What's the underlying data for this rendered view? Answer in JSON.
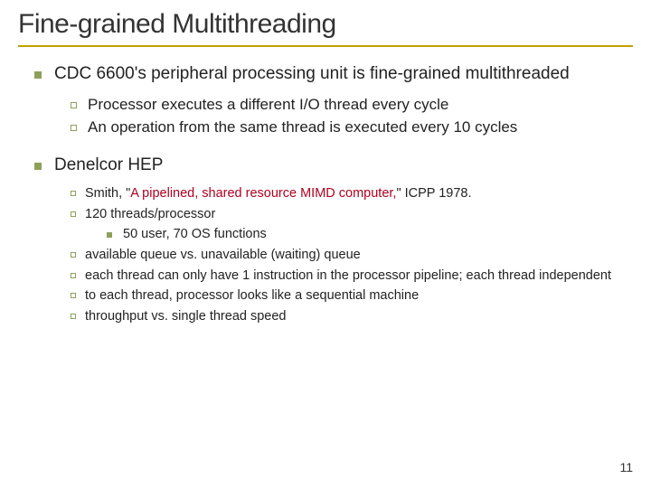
{
  "title": "Fine-grained Multithreading",
  "title_color": "#333333",
  "hr_color": "#c0a000",
  "bullet_color": "#8da05a",
  "background_color": "#ffffff",
  "page_number": "11",
  "s1": {
    "heading": "CDC 6600's peripheral processing unit is fine-grained multithreaded",
    "items": [
      "Processor executes a different I/O thread every cycle",
      "An operation from the same thread is executed every 10 cycles"
    ]
  },
  "s2": {
    "heading": "Denelcor HEP",
    "items": {
      "i0_pre": "Smith, \"",
      "i0_red": "A pipelined, shared resource MIMD computer,",
      "i0_post": "\" ICPP 1978.",
      "i1": "120 threads/processor",
      "i1_sub": "50 user, 70 OS functions",
      "i2": "available queue vs. unavailable (waiting) queue",
      "i3": "each thread can only have 1 instruction in the processor pipeline; each thread independent",
      "i4": "to each thread, processor looks like a sequential machine",
      "i5": "throughput vs. single thread speed"
    }
  }
}
